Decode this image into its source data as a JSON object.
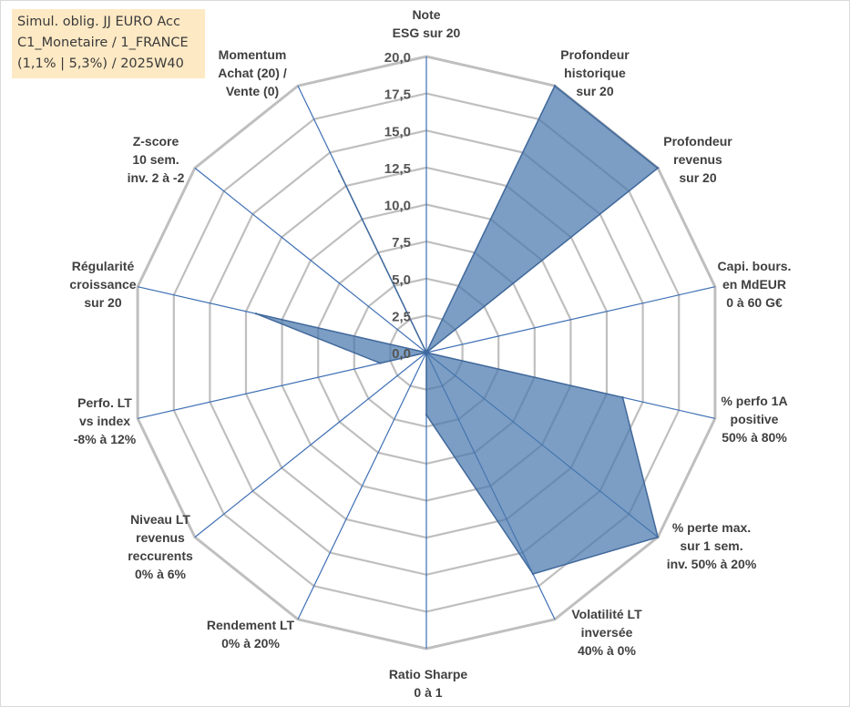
{
  "info_box": {
    "lines": [
      "Simul. oblig. JJ EURO Acc",
      "C1_Monetaire / 1_FRANCE",
      "(1,1% | 5,3%) / 2025W40"
    ]
  },
  "colors": {
    "fill": "#4a78ad",
    "stroke": "#41699b",
    "grid": "#bfbfbf",
    "spoke": "#3e6fb5",
    "info_bg": "#fde9c4"
  },
  "chart_data": {
    "type": "radar",
    "title": "",
    "rlim": [
      0,
      20
    ],
    "grid": true,
    "ticks": [
      "0,0",
      "2,5",
      "5,0",
      "7,5",
      "10,0",
      "12,5",
      "15,0",
      "17,5",
      "20,0"
    ],
    "tick_values": [
      0,
      2.5,
      5,
      7.5,
      10,
      12.5,
      15,
      17.5,
      20
    ],
    "axes": [
      {
        "lines": [
          "Note",
          "ESG sur 20"
        ]
      },
      {
        "lines": [
          "Profondeur",
          "historique",
          "sur 20"
        ]
      },
      {
        "lines": [
          "Profondeur",
          "revenus",
          "sur 20"
        ]
      },
      {
        "lines": [
          "Capi. bours.",
          "en MdEUR",
          "0 à 60 G€"
        ]
      },
      {
        "lines": [
          "% perfo 1A",
          "positive",
          "50% à 80%"
        ]
      },
      {
        "lines": [
          "% perte max.",
          "sur 1 sem.",
          "inv. 50% à 20%"
        ]
      },
      {
        "lines": [
          "Volatilité LT",
          "inversée",
          "40% à 0%"
        ]
      },
      {
        "lines": [
          "Ratio Sharpe",
          "0 à 1"
        ]
      },
      {
        "lines": [
          "Rendement LT",
          "0% à 20%"
        ]
      },
      {
        "lines": [
          "Niveau LT",
          "revenus",
          "reccurents",
          "0% à 6%"
        ]
      },
      {
        "lines": [
          "Perfo. LT",
          "vs index",
          "-8% à 12%"
        ]
      },
      {
        "lines": [
          "Régularité",
          "croissance",
          "sur 20"
        ]
      },
      {
        "lines": [
          "Z-score",
          "10 sem.",
          "inv. 2 à -2"
        ]
      },
      {
        "lines": [
          "Momentum",
          "Achat (20) /",
          "Vente (0)"
        ]
      }
    ],
    "series": [
      {
        "values": [
          0,
          20,
          20,
          0,
          13.6,
          20,
          16.6,
          4.2,
          0,
          0,
          3.2,
          11.8,
          0,
          13.6
        ]
      }
    ]
  }
}
